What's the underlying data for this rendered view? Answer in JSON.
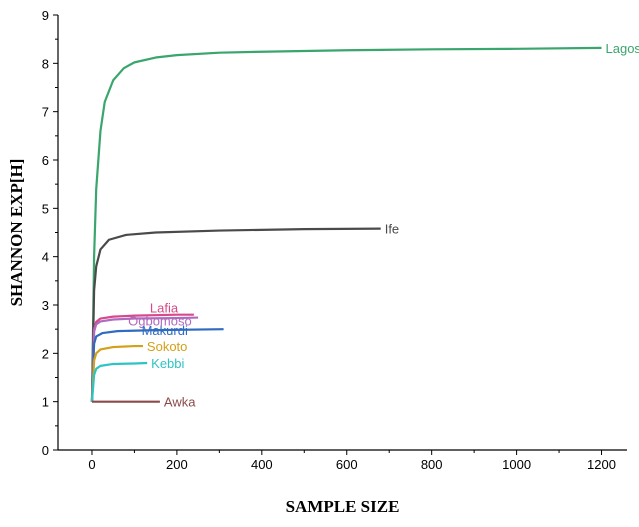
{
  "chart_data": {
    "type": "line",
    "title": "",
    "xlabel": "SAMPLE SIZE",
    "ylabel": "SHANNON EXP[H]",
    "xlim": [
      -80,
      1260
    ],
    "ylim": [
      0,
      9
    ],
    "xticks": [
      0,
      200,
      400,
      600,
      800,
      1000,
      1200
    ],
    "yticks": [
      0,
      1,
      2,
      3,
      4,
      5,
      6,
      7,
      8,
      9
    ],
    "grid": false,
    "legend": "none",
    "series": [
      {
        "name": "Lagos",
        "color": "#3aa56c",
        "points": [
          [
            0,
            1.0
          ],
          [
            5,
            4.0
          ],
          [
            10,
            5.4
          ],
          [
            20,
            6.6
          ],
          [
            30,
            7.2
          ],
          [
            50,
            7.65
          ],
          [
            75,
            7.9
          ],
          [
            100,
            8.02
          ],
          [
            150,
            8.12
          ],
          [
            200,
            8.17
          ],
          [
            300,
            8.22
          ],
          [
            400,
            8.24
          ],
          [
            600,
            8.27
          ],
          [
            800,
            8.29
          ],
          [
            1000,
            8.3
          ],
          [
            1200,
            8.32
          ]
        ]
      },
      {
        "name": "Ife",
        "color": "#4a4a4a",
        "points": [
          [
            0,
            1.0
          ],
          [
            5,
            3.3
          ],
          [
            10,
            3.8
          ],
          [
            20,
            4.15
          ],
          [
            40,
            4.35
          ],
          [
            80,
            4.45
          ],
          [
            150,
            4.5
          ],
          [
            300,
            4.54
          ],
          [
            500,
            4.57
          ],
          [
            680,
            4.58
          ]
        ]
      },
      {
        "name": "Lafia",
        "color": "#d64a8a",
        "points": [
          [
            0,
            1.0
          ],
          [
            5,
            2.5
          ],
          [
            10,
            2.65
          ],
          [
            20,
            2.72
          ],
          [
            50,
            2.76
          ],
          [
            100,
            2.78
          ],
          [
            200,
            2.8
          ],
          [
            240,
            2.8
          ]
        ]
      },
      {
        "name": "Ogbomoso",
        "color": "#b06abf",
        "points": [
          [
            0,
            1.0
          ],
          [
            5,
            2.45
          ],
          [
            10,
            2.6
          ],
          [
            20,
            2.66
          ],
          [
            50,
            2.7
          ],
          [
            100,
            2.72
          ],
          [
            200,
            2.73
          ],
          [
            250,
            2.74
          ]
        ]
      },
      {
        "name": "Makurdi",
        "color": "#2f6bbf",
        "points": [
          [
            0,
            1.0
          ],
          [
            5,
            2.2
          ],
          [
            10,
            2.35
          ],
          [
            25,
            2.42
          ],
          [
            60,
            2.46
          ],
          [
            150,
            2.48
          ],
          [
            310,
            2.5
          ]
        ]
      },
      {
        "name": "Sokoto",
        "color": "#d4a017",
        "points": [
          [
            0,
            1.0
          ],
          [
            5,
            1.85
          ],
          [
            10,
            2.0
          ],
          [
            20,
            2.08
          ],
          [
            50,
            2.13
          ],
          [
            100,
            2.15
          ],
          [
            120,
            2.15
          ]
        ]
      },
      {
        "name": "Kebbi",
        "color": "#2ec4c4",
        "points": [
          [
            0,
            1.0
          ],
          [
            5,
            1.55
          ],
          [
            10,
            1.68
          ],
          [
            20,
            1.74
          ],
          [
            50,
            1.78
          ],
          [
            100,
            1.79
          ],
          [
            130,
            1.8
          ]
        ]
      },
      {
        "name": "Awka",
        "color": "#8a4a4a",
        "points": [
          [
            0,
            1.0
          ],
          [
            160,
            1.0
          ]
        ]
      }
    ]
  }
}
